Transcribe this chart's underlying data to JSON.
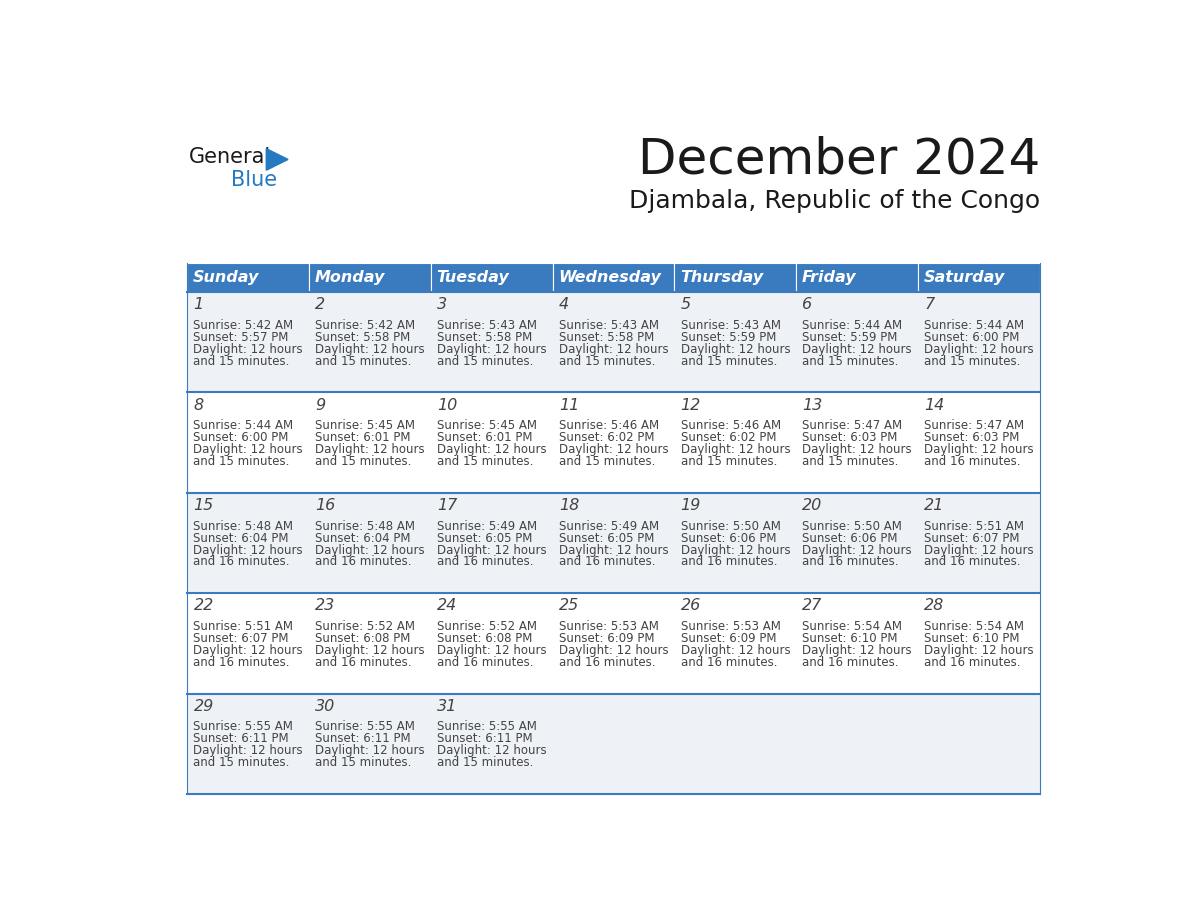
{
  "title": "December 2024",
  "subtitle": "Djambala, Republic of the Congo",
  "header_color": "#3a7abf",
  "header_text_color": "#ffffff",
  "bg_color": "#ffffff",
  "cell_bg_even": "#eef2f7",
  "cell_bg_odd": "#ffffff",
  "line_color": "#3a7abf",
  "text_color": "#444444",
  "days_of_week": [
    "Sunday",
    "Monday",
    "Tuesday",
    "Wednesday",
    "Thursday",
    "Friday",
    "Saturday"
  ],
  "weeks": [
    [
      {
        "day": 1,
        "sunrise": "5:42 AM",
        "sunset": "5:57 PM",
        "daylight": "15 minutes."
      },
      {
        "day": 2,
        "sunrise": "5:42 AM",
        "sunset": "5:58 PM",
        "daylight": "15 minutes."
      },
      {
        "day": 3,
        "sunrise": "5:43 AM",
        "sunset": "5:58 PM",
        "daylight": "15 minutes."
      },
      {
        "day": 4,
        "sunrise": "5:43 AM",
        "sunset": "5:58 PM",
        "daylight": "15 minutes."
      },
      {
        "day": 5,
        "sunrise": "5:43 AM",
        "sunset": "5:59 PM",
        "daylight": "15 minutes."
      },
      {
        "day": 6,
        "sunrise": "5:44 AM",
        "sunset": "5:59 PM",
        "daylight": "15 minutes."
      },
      {
        "day": 7,
        "sunrise": "5:44 AM",
        "sunset": "6:00 PM",
        "daylight": "15 minutes."
      }
    ],
    [
      {
        "day": 8,
        "sunrise": "5:44 AM",
        "sunset": "6:00 PM",
        "daylight": "15 minutes."
      },
      {
        "day": 9,
        "sunrise": "5:45 AM",
        "sunset": "6:01 PM",
        "daylight": "15 minutes."
      },
      {
        "day": 10,
        "sunrise": "5:45 AM",
        "sunset": "6:01 PM",
        "daylight": "15 minutes."
      },
      {
        "day": 11,
        "sunrise": "5:46 AM",
        "sunset": "6:02 PM",
        "daylight": "15 minutes."
      },
      {
        "day": 12,
        "sunrise": "5:46 AM",
        "sunset": "6:02 PM",
        "daylight": "15 minutes."
      },
      {
        "day": 13,
        "sunrise": "5:47 AM",
        "sunset": "6:03 PM",
        "daylight": "15 minutes."
      },
      {
        "day": 14,
        "sunrise": "5:47 AM",
        "sunset": "6:03 PM",
        "daylight": "16 minutes."
      }
    ],
    [
      {
        "day": 15,
        "sunrise": "5:48 AM",
        "sunset": "6:04 PM",
        "daylight": "16 minutes."
      },
      {
        "day": 16,
        "sunrise": "5:48 AM",
        "sunset": "6:04 PM",
        "daylight": "16 minutes."
      },
      {
        "day": 17,
        "sunrise": "5:49 AM",
        "sunset": "6:05 PM",
        "daylight": "16 minutes."
      },
      {
        "day": 18,
        "sunrise": "5:49 AM",
        "sunset": "6:05 PM",
        "daylight": "16 minutes."
      },
      {
        "day": 19,
        "sunrise": "5:50 AM",
        "sunset": "6:06 PM",
        "daylight": "16 minutes."
      },
      {
        "day": 20,
        "sunrise": "5:50 AM",
        "sunset": "6:06 PM",
        "daylight": "16 minutes."
      },
      {
        "day": 21,
        "sunrise": "5:51 AM",
        "sunset": "6:07 PM",
        "daylight": "16 minutes."
      }
    ],
    [
      {
        "day": 22,
        "sunrise": "5:51 AM",
        "sunset": "6:07 PM",
        "daylight": "16 minutes."
      },
      {
        "day": 23,
        "sunrise": "5:52 AM",
        "sunset": "6:08 PM",
        "daylight": "16 minutes."
      },
      {
        "day": 24,
        "sunrise": "5:52 AM",
        "sunset": "6:08 PM",
        "daylight": "16 minutes."
      },
      {
        "day": 25,
        "sunrise": "5:53 AM",
        "sunset": "6:09 PM",
        "daylight": "16 minutes."
      },
      {
        "day": 26,
        "sunrise": "5:53 AM",
        "sunset": "6:09 PM",
        "daylight": "16 minutes."
      },
      {
        "day": 27,
        "sunrise": "5:54 AM",
        "sunset": "6:10 PM",
        "daylight": "16 minutes."
      },
      {
        "day": 28,
        "sunrise": "5:54 AM",
        "sunset": "6:10 PM",
        "daylight": "16 minutes."
      }
    ],
    [
      {
        "day": 29,
        "sunrise": "5:55 AM",
        "sunset": "6:11 PM",
        "daylight": "15 minutes."
      },
      {
        "day": 30,
        "sunrise": "5:55 AM",
        "sunset": "6:11 PM",
        "daylight": "15 minutes."
      },
      {
        "day": 31,
        "sunrise": "5:55 AM",
        "sunset": "6:11 PM",
        "daylight": "15 minutes."
      },
      null,
      null,
      null,
      null
    ]
  ],
  "logo_color_general": "#1a1a1a",
  "logo_color_blue": "#2479c0",
  "logo_triangle_color": "#2479c0"
}
